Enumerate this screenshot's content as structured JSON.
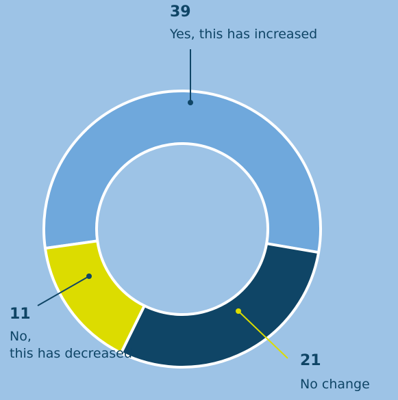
{
  "chart_data": {
    "type": "donut",
    "categories": [
      "Yes, this has increased",
      "No change",
      "No,\nthis has decreased"
    ],
    "values": [
      39,
      21,
      11
    ],
    "colors": [
      "#6fa8dc",
      "#0f4566",
      "#dcdc00"
    ]
  }
}
